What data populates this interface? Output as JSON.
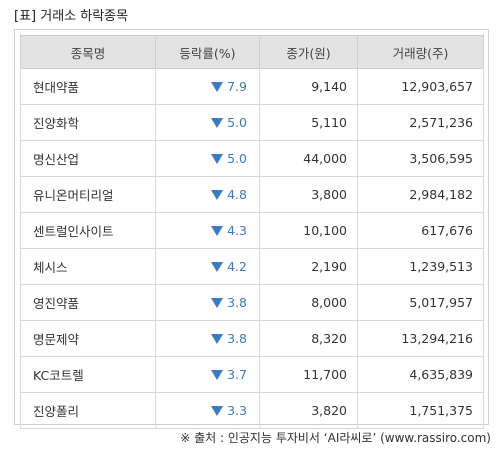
{
  "title": "[표] 거래소 하락종목",
  "table": {
    "headers": [
      "종목명",
      "등락률(%)",
      "종가(원)",
      "거래량(주)"
    ],
    "rows": [
      {
        "name": "현대약품",
        "change": "7.9",
        "price": "9,140",
        "volume": "12,903,657"
      },
      {
        "name": "진양화학",
        "change": "5.0",
        "price": "5,110",
        "volume": "2,571,236"
      },
      {
        "name": "명신산업",
        "change": "5.0",
        "price": "44,000",
        "volume": "3,506,595"
      },
      {
        "name": "유니온머티리얼",
        "change": "4.8",
        "price": "3,800",
        "volume": "2,984,182"
      },
      {
        "name": "센트럴인사이트",
        "change": "4.3",
        "price": "10,100",
        "volume": "617,676"
      },
      {
        "name": "체시스",
        "change": "4.2",
        "price": "2,190",
        "volume": "1,239,513"
      },
      {
        "name": "영진약품",
        "change": "3.8",
        "price": "8,000",
        "volume": "5,017,957"
      },
      {
        "name": "명문제약",
        "change": "3.8",
        "price": "8,320",
        "volume": "13,294,216"
      },
      {
        "name": "KC코트렐",
        "change": "3.7",
        "price": "11,700",
        "volume": "4,635,839"
      },
      {
        "name": "진양폴리",
        "change": "3.3",
        "price": "3,820",
        "volume": "1,751,375"
      }
    ]
  },
  "change_icon": "down-triangle-icon",
  "colors": {
    "down": "#3a7bc8",
    "header_bg": "#e3e3e3",
    "border": "#cfcfcf"
  },
  "footer": "※ 출처 : 인공지능 투자비서 ‘AI라씨로’ (www.rassiro.com)"
}
